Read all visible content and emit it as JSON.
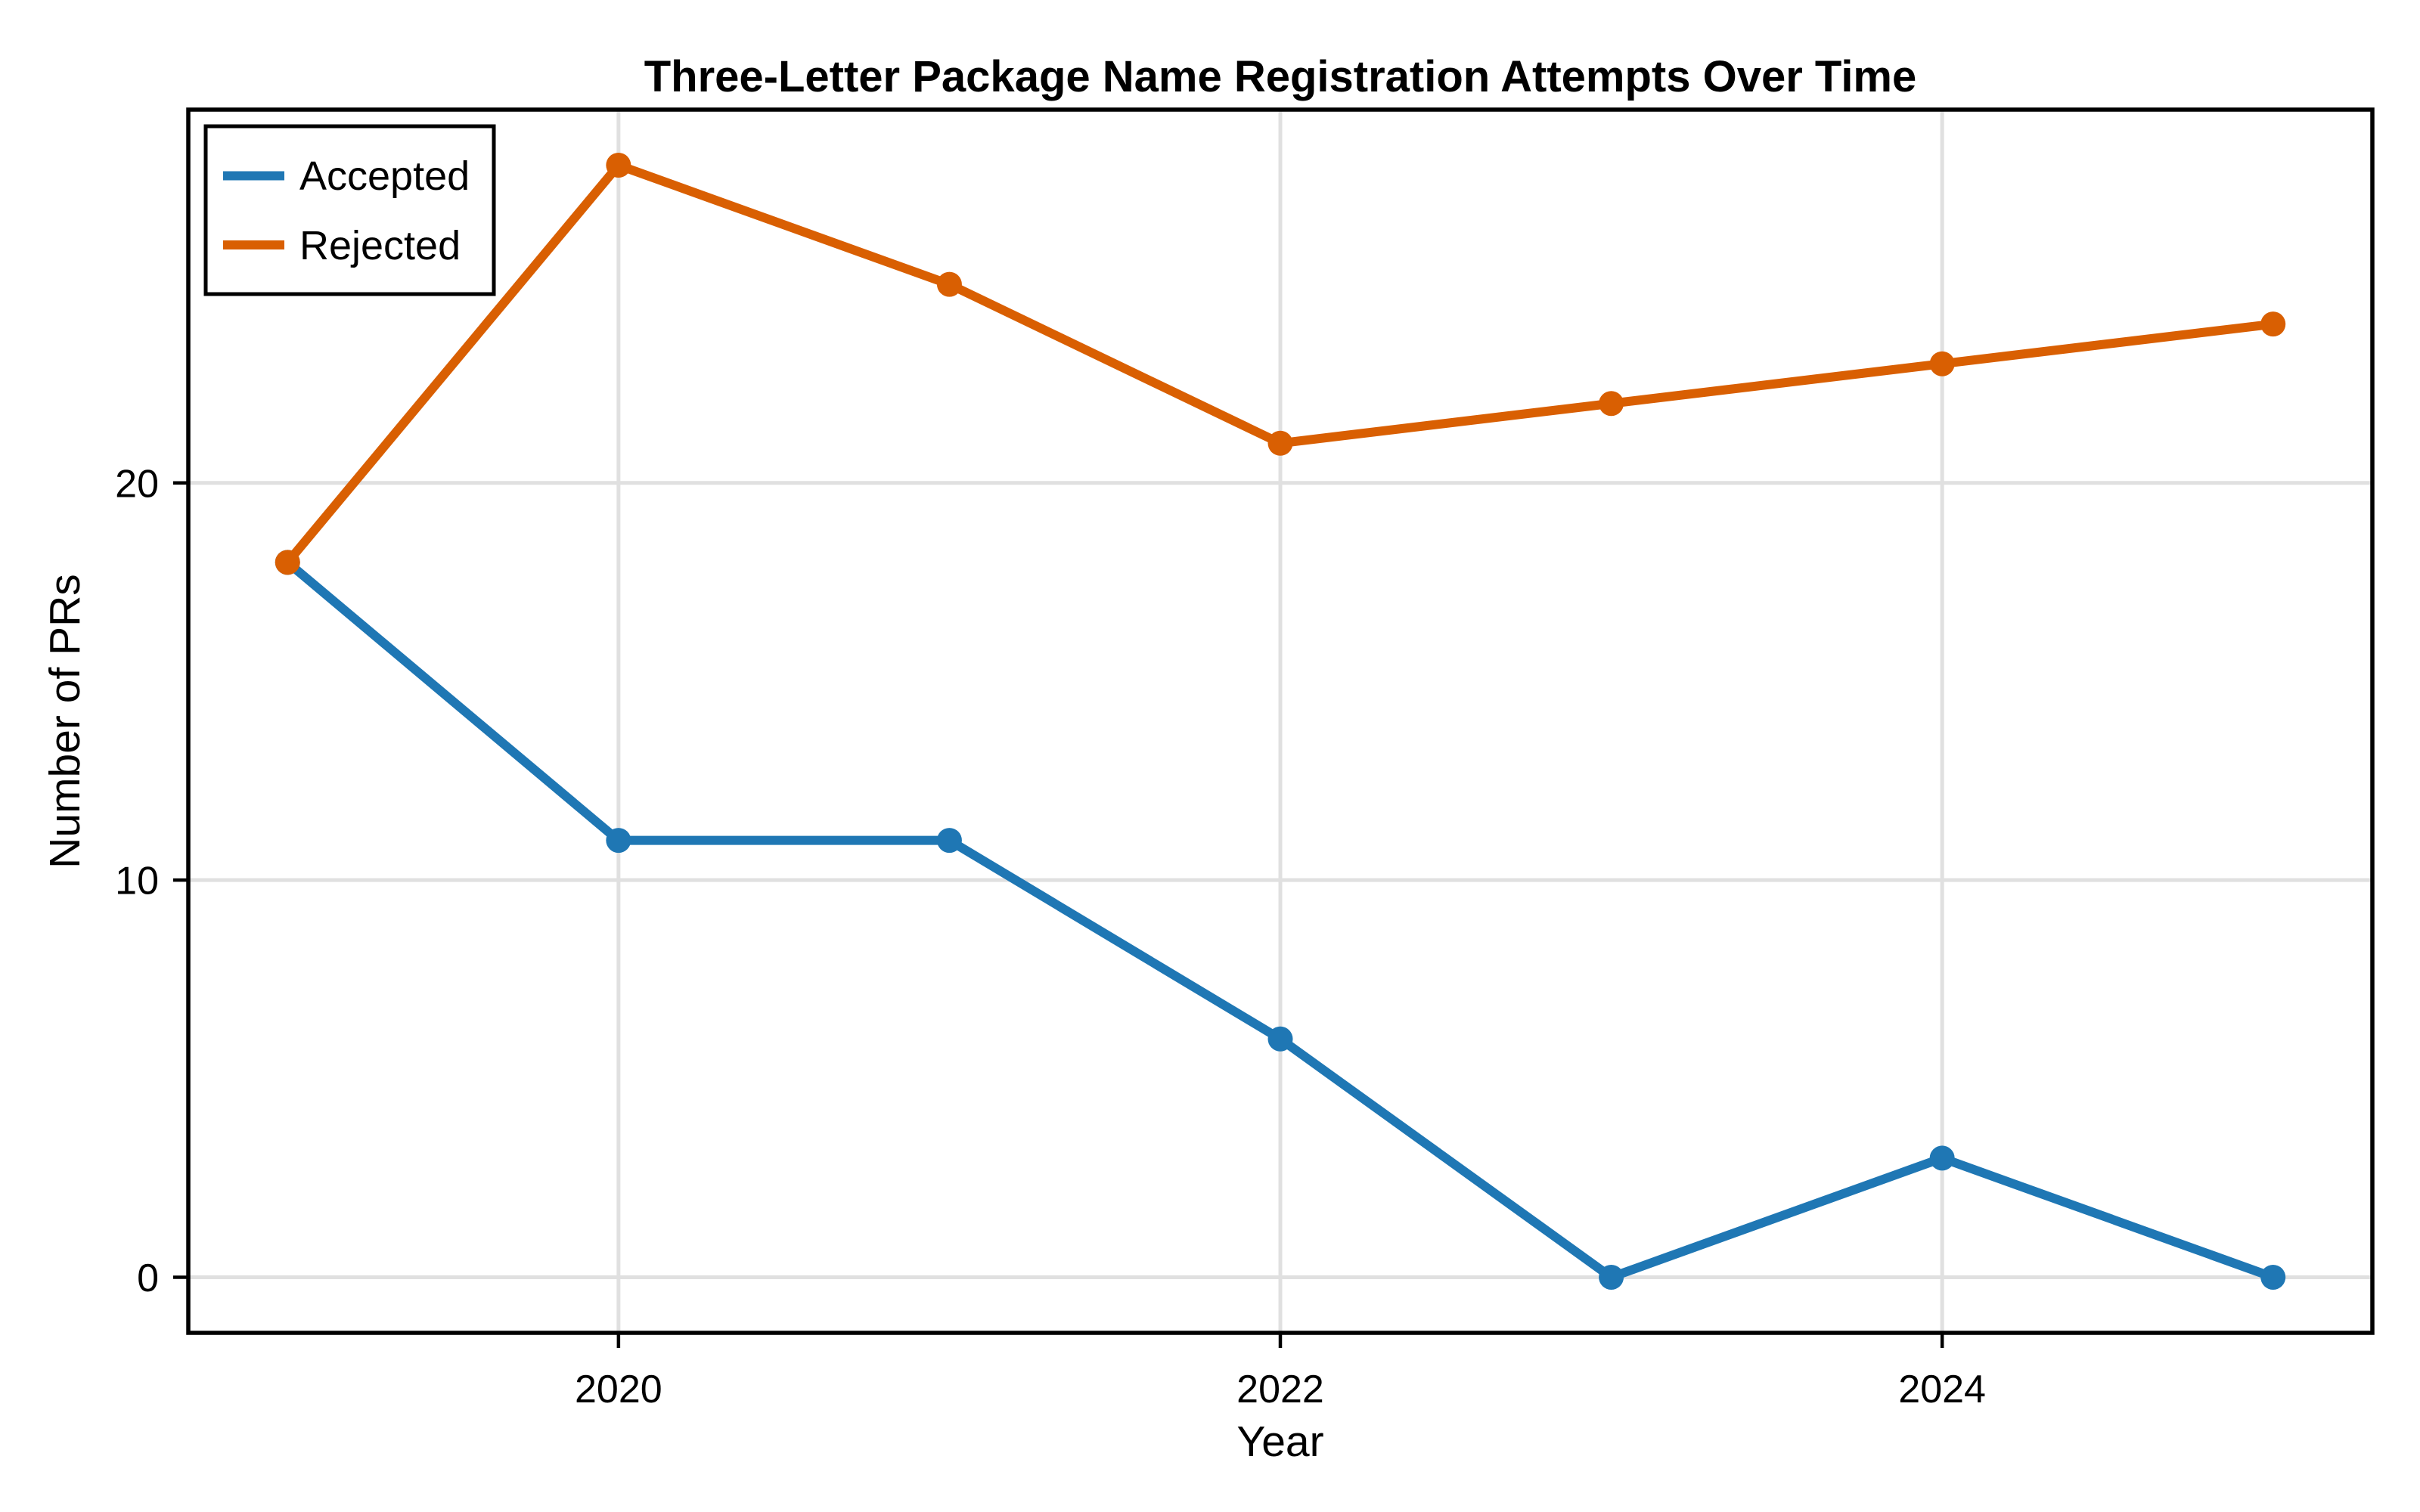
{
  "figure": {
    "background": "#ffffff"
  },
  "chart_data": {
    "type": "line",
    "title": "Three-Letter Package Name Registration Attempts Over Time",
    "xlabel": "Year",
    "ylabel": "Number of PRs",
    "x": [
      2019,
      2020,
      2021,
      2022,
      2023,
      2024,
      2025
    ],
    "series": [
      {
        "name": "Accepted",
        "color": "#1f77b4",
        "values": [
          18,
          11,
          11,
          6,
          0,
          3,
          0
        ]
      },
      {
        "name": "Rejected",
        "color": "#d95f02",
        "values": [
          18,
          28,
          25,
          21,
          22,
          23,
          24
        ]
      }
    ],
    "x_ticks": [
      2020,
      2022,
      2024
    ],
    "y_ticks": [
      0,
      10,
      20
    ],
    "xlim": [
      2018.7,
      2025.3
    ],
    "ylim": [
      -1.4,
      29.4
    ],
    "grid": true,
    "grid_color": "#e0e0e0",
    "spine_color": "#000000",
    "marker": "circle",
    "marker_radius": 16.5,
    "line_width": 12,
    "legend": {
      "position": "upper left"
    }
  }
}
